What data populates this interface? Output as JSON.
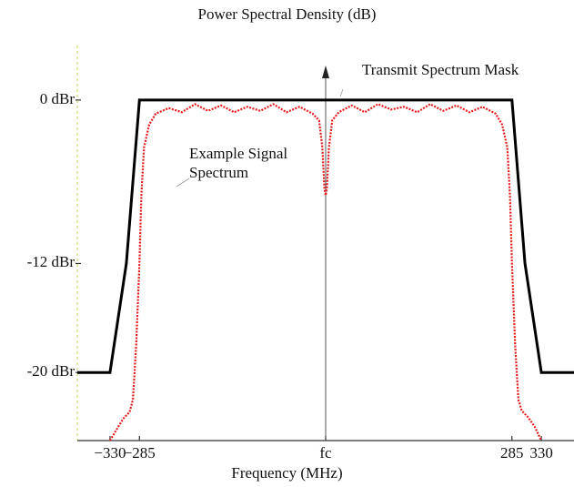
{
  "chart_data": {
    "type": "line",
    "title": "Power Spectral Density (dB)",
    "xlabel": "Frequency (MHz)",
    "ylabel": "",
    "xlim": [
      -380,
      380
    ],
    "ylim": [
      -25,
      4
    ],
    "y_ticks": [
      {
        "value": 0,
        "label": "0  dBr"
      },
      {
        "value": -12,
        "label": "-12 dBr"
      },
      {
        "value": -20,
        "label": "-20 dBr"
      }
    ],
    "x_ticks": [
      {
        "value": -330,
        "label": "−330"
      },
      {
        "value": -285,
        "label": "−285"
      },
      {
        "value": 0,
        "label": "fc"
      },
      {
        "value": 285,
        "label": "285"
      },
      {
        "value": 330,
        "label": "330"
      }
    ],
    "series": [
      {
        "name": "Transmit Spectrum Mask",
        "color": "#000000",
        "points": [
          [
            -380,
            -20
          ],
          [
            -330,
            -20
          ],
          [
            -305,
            -12
          ],
          [
            -285,
            0
          ],
          [
            285,
            0
          ],
          [
            305,
            -12
          ],
          [
            330,
            -20
          ],
          [
            380,
            -20
          ]
        ]
      },
      {
        "name": "Example Signal Spectrum",
        "color": "#e41a1c",
        "points": [
          [
            -330,
            -25
          ],
          [
            -320,
            -24.2
          ],
          [
            -310,
            -23.4
          ],
          [
            -300,
            -22.9
          ],
          [
            -295,
            -22.0
          ],
          [
            -290,
            -18.0
          ],
          [
            -285,
            -12.0
          ],
          [
            -282,
            -7.0
          ],
          [
            -278,
            -3.5
          ],
          [
            -270,
            -1.8
          ],
          [
            -260,
            -1.0
          ],
          [
            -240,
            -0.6
          ],
          [
            -220,
            -0.9
          ],
          [
            -200,
            -0.3
          ],
          [
            -180,
            -0.8
          ],
          [
            -160,
            -0.4
          ],
          [
            -140,
            -0.9
          ],
          [
            -120,
            -0.5
          ],
          [
            -100,
            -0.8
          ],
          [
            -80,
            -0.3
          ],
          [
            -60,
            -0.9
          ],
          [
            -40,
            -0.5
          ],
          [
            -20,
            -1.0
          ],
          [
            -10,
            -1.5
          ],
          [
            -5,
            -3.5
          ],
          [
            -2,
            -6.5
          ],
          [
            0,
            -7.0
          ],
          [
            2,
            -6.5
          ],
          [
            5,
            -3.5
          ],
          [
            10,
            -1.5
          ],
          [
            20,
            -0.9
          ],
          [
            40,
            -0.4
          ],
          [
            60,
            -0.9
          ],
          [
            80,
            -0.3
          ],
          [
            100,
            -0.7
          ],
          [
            120,
            -0.5
          ],
          [
            140,
            -0.9
          ],
          [
            160,
            -0.3
          ],
          [
            180,
            -0.8
          ],
          [
            200,
            -0.4
          ],
          [
            220,
            -0.9
          ],
          [
            240,
            -0.5
          ],
          [
            260,
            -1.0
          ],
          [
            270,
            -1.8
          ],
          [
            278,
            -3.5
          ],
          [
            282,
            -7.0
          ],
          [
            285,
            -12.0
          ],
          [
            290,
            -18.0
          ],
          [
            295,
            -22.0
          ],
          [
            300,
            -22.8
          ],
          [
            310,
            -23.3
          ],
          [
            320,
            -24.0
          ],
          [
            330,
            -25
          ]
        ]
      }
    ],
    "annotations": [
      {
        "text": "Transmit Spectrum Mask"
      },
      {
        "text": "Example Signal\nSpectrum"
      }
    ],
    "grid": false,
    "legend": "none"
  }
}
